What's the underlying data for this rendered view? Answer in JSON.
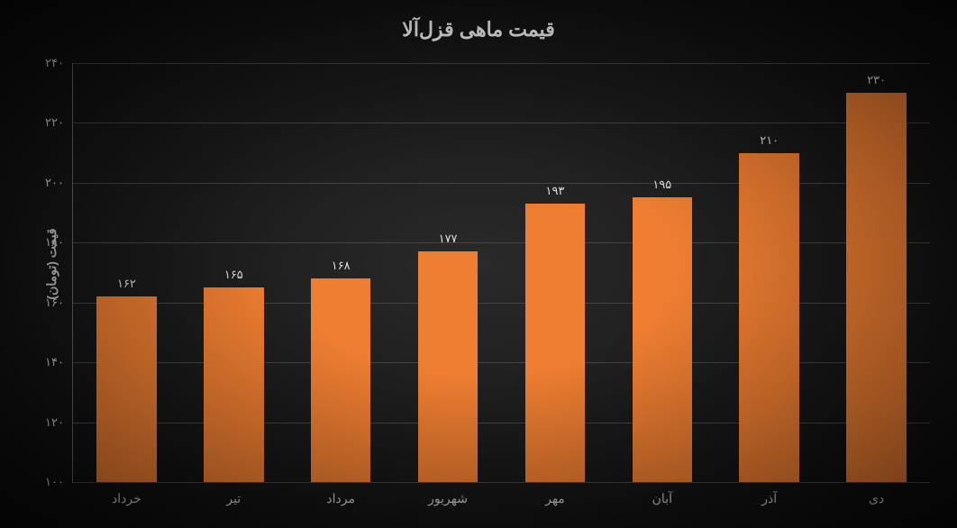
{
  "chart": {
    "type": "bar",
    "title": "قیمت ماهی قزل‌آلا",
    "title_fontsize": 22,
    "y_axis_label": "قیمت (تومان)",
    "label_fontsize": 14,
    "background": "radial-gradient(#2a2a2a, #0a0a0a)",
    "grid_color": "#444444",
    "axis_color": "#666666",
    "text_color": "#cccccc",
    "bar_color": "#ed7d31",
    "bar_width_ratio": 0.56,
    "ylim": [
      100,
      240
    ],
    "ytick_step": 20,
    "y_ticks": [
      {
        "value": 100,
        "label": "۱۰۰"
      },
      {
        "value": 120,
        "label": "۱۲۰"
      },
      {
        "value": 140,
        "label": "۱۴۰"
      },
      {
        "value": 160,
        "label": "۱۶۰"
      },
      {
        "value": 180,
        "label": "۱۸۰"
      },
      {
        "value": 200,
        "label": "۲۰۰"
      },
      {
        "value": 220,
        "label": "۲۲۰"
      },
      {
        "value": 240,
        "label": "۲۴۰"
      }
    ],
    "data": [
      {
        "category": "خرداد",
        "value": 162,
        "value_label": "۱۶۲"
      },
      {
        "category": "تیر",
        "value": 165,
        "value_label": "۱۶۵"
      },
      {
        "category": "مرداد",
        "value": 168,
        "value_label": "۱۶۸"
      },
      {
        "category": "شهریور",
        "value": 177,
        "value_label": "۱۷۷"
      },
      {
        "category": "مهر",
        "value": 193,
        "value_label": "۱۹۳"
      },
      {
        "category": "آبان",
        "value": 195,
        "value_label": "۱۹۵"
      },
      {
        "category": "آذر",
        "value": 210,
        "value_label": "۲۱۰"
      },
      {
        "category": "دی",
        "value": 230,
        "value_label": "۲۳۰"
      }
    ]
  }
}
